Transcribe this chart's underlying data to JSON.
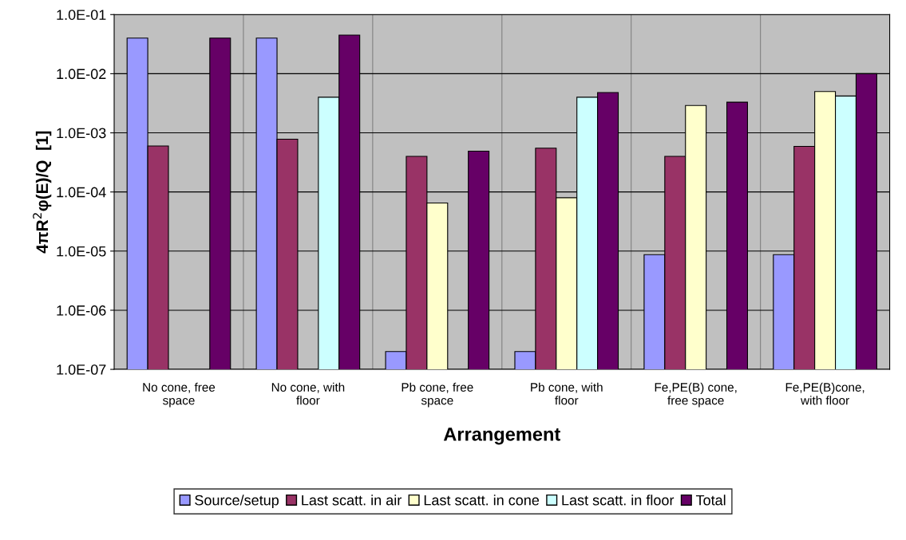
{
  "chart_data": {
    "type": "bar",
    "xlabel": "Arrangement",
    "ylabel": "4πR$^{2}$φ(E)/Q  [1]",
    "categories": [
      "No cone, free\nspace",
      "No cone, with\nfloor",
      "Pb cone, free\nspace",
      "Pb cone, with\nfloor",
      "Fe,PE(B) cone,\nfree space",
      "Fe,PE(B)cone,\nwith floor"
    ],
    "series": [
      {
        "name": "Source/setup",
        "color": "#9999ff",
        "values": [
          0.04,
          0.04,
          2e-07,
          2e-07,
          8.7e-06,
          8.7e-06
        ]
      },
      {
        "name": "Last scatt. in air",
        "color": "#993366",
        "values": [
          0.0006,
          0.00078,
          0.0004,
          0.00055,
          0.0004,
          0.00059
        ]
      },
      {
        "name": "Last scatt. in cone",
        "color": "#ffffcc",
        "values": [
          null,
          null,
          6.5e-05,
          8e-05,
          0.0029,
          0.005
        ]
      },
      {
        "name": "Last scatt. in floor",
        "color": "#ccffff",
        "values": [
          null,
          0.004,
          null,
          0.004,
          null,
          0.0042
        ]
      },
      {
        "name": "Total",
        "color": "#660066",
        "values": [
          0.04,
          0.045,
          0.00049,
          0.0048,
          0.0033,
          0.01
        ]
      }
    ],
    "log": "y",
    "ylim": [
      1e-07,
      0.1
    ],
    "yticks": [
      {
        "value": 1e-07,
        "label": "1.0E-07"
      },
      {
        "value": 1e-06,
        "label": "1.0E-06"
      },
      {
        "value": 1e-05,
        "label": "1.0E-05"
      },
      {
        "value": 0.0001,
        "label": "1.0E-04"
      },
      {
        "value": 0.001,
        "label": "1.0E-03"
      },
      {
        "value": 0.01,
        "label": "1.0E-02"
      },
      {
        "value": 0.1,
        "label": "1.0E-01"
      }
    ],
    "grid": true,
    "legend": "bottom"
  }
}
